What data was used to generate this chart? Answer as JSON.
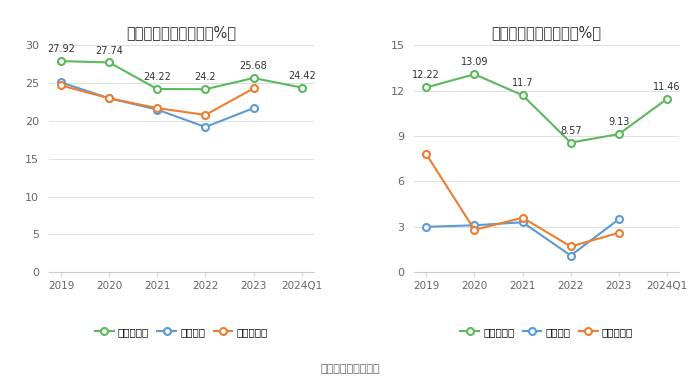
{
  "left_title": "历年毛利率变化情况（%）",
  "right_title": "历年净利率变化情况（%）",
  "footer": "数据来源：恒生聚源",
  "x_labels": [
    "2019",
    "2020",
    "2021",
    "2022",
    "2023",
    "2024Q1"
  ],
  "gross_margin": {
    "company": [
      27.92,
      27.74,
      24.22,
      24.2,
      25.68,
      24.42
    ],
    "industry_avg": [
      25.1,
      23.0,
      21.5,
      19.2,
      21.7,
      null
    ],
    "industry_median": [
      24.7,
      23.0,
      21.7,
      20.8,
      24.3,
      null
    ]
  },
  "net_margin": {
    "company": [
      12.22,
      13.09,
      11.7,
      8.57,
      9.13,
      11.46
    ],
    "industry_avg": [
      3.0,
      3.1,
      3.3,
      1.1,
      3.5,
      null
    ],
    "industry_median": [
      7.8,
      2.8,
      3.6,
      1.7,
      2.6,
      null
    ]
  },
  "colors": {
    "company": "#5cb85c",
    "industry_avg": "#5b9bd5",
    "industry_median": "#ed7d31"
  },
  "left_ylim": [
    0,
    30
  ],
  "left_yticks": [
    0,
    5,
    10,
    15,
    20,
    25,
    30
  ],
  "right_ylim": [
    0,
    15
  ],
  "right_yticks": [
    0,
    3,
    6,
    9,
    12,
    15
  ],
  "legend_company_gross": "公司毛利率",
  "legend_company_net": "公司净利率",
  "legend_avg": "行业均值",
  "legend_median": "行业中位数",
  "bg_color": "#ffffff",
  "grid_color": "#e0e0e0"
}
